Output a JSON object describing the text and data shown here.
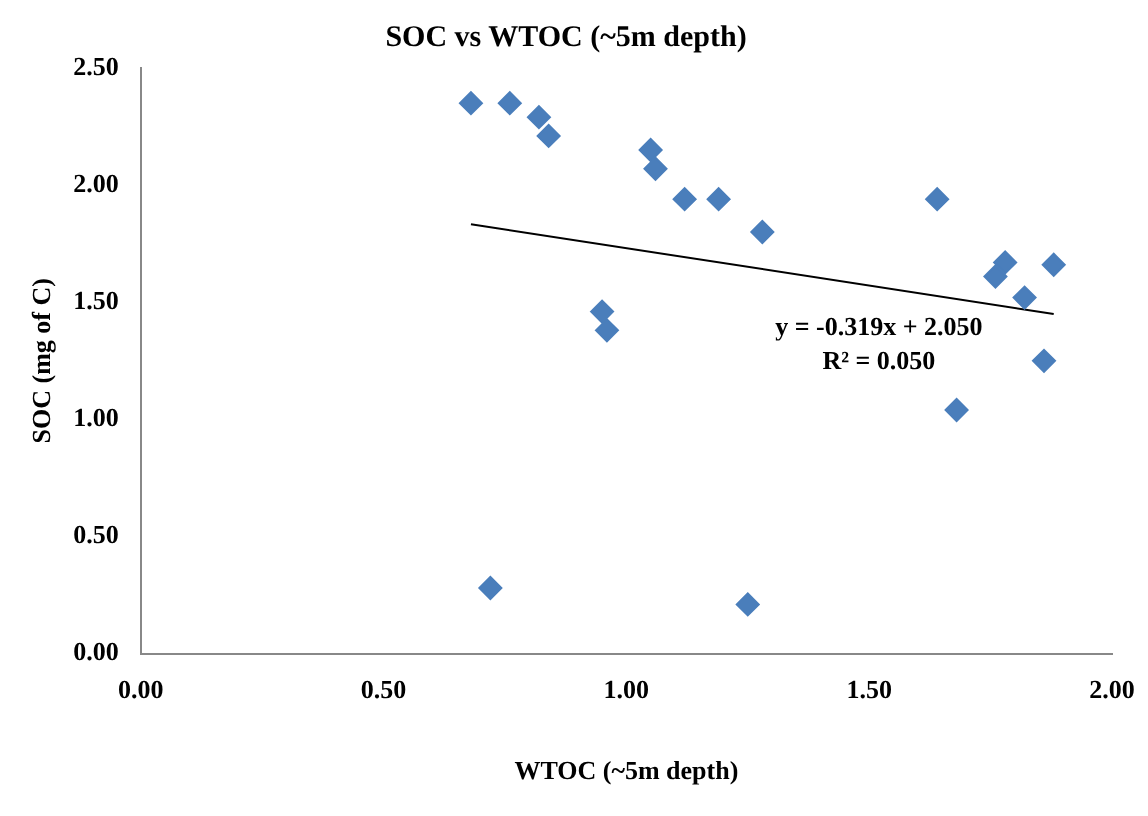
{
  "chart_data": {
    "type": "scatter",
    "title": "SOC vs WTOC (~5m depth)",
    "xlabel": "WTOC (~5m depth)",
    "ylabel": "SOC (mg of C)",
    "xlim": [
      0,
      2
    ],
    "ylim": [
      0,
      2.5
    ],
    "xticks": [
      {
        "value": 0,
        "label": "0.00"
      },
      {
        "value": 0.5,
        "label": "0.50"
      },
      {
        "value": 1,
        "label": "1.00"
      },
      {
        "value": 1.5,
        "label": "1.50"
      },
      {
        "value": 2,
        "label": "2.00"
      }
    ],
    "yticks": [
      {
        "value": 0,
        "label": "0.00"
      },
      {
        "value": 0.5,
        "label": "0.50"
      },
      {
        "value": 1,
        "label": "1.00"
      },
      {
        "value": 1.5,
        "label": "1.50"
      },
      {
        "value": 2,
        "label": "2.00"
      },
      {
        "value": 2.5,
        "label": "2.50"
      }
    ],
    "grid": false,
    "legend": false,
    "marker": "diamond",
    "series": [
      {
        "color": "#4a7ebb",
        "x": [
          0.68,
          0.76,
          0.82,
          0.84,
          0.72,
          0.95,
          0.96,
          1.05,
          1.06,
          1.12,
          1.19,
          1.28,
          1.25,
          1.64,
          1.68,
          1.78,
          1.76,
          1.88,
          1.82,
          1.86
        ],
        "values": [
          2.35,
          2.35,
          2.29,
          2.21,
          0.28,
          1.46,
          1.38,
          2.15,
          2.07,
          1.94,
          1.94,
          1.8,
          0.21,
          1.94,
          1.04,
          1.67,
          1.61,
          1.66,
          1.52,
          1.25
        ]
      },
      {
        "type": "line",
        "color": "#000000",
        "marker": "none",
        "x": [
          0.68,
          1.88
        ],
        "values": [
          1.833,
          1.45
        ]
      }
    ],
    "annotations": [
      "y = -0.319x + 2.050",
      "R² = 0.050"
    ]
  }
}
